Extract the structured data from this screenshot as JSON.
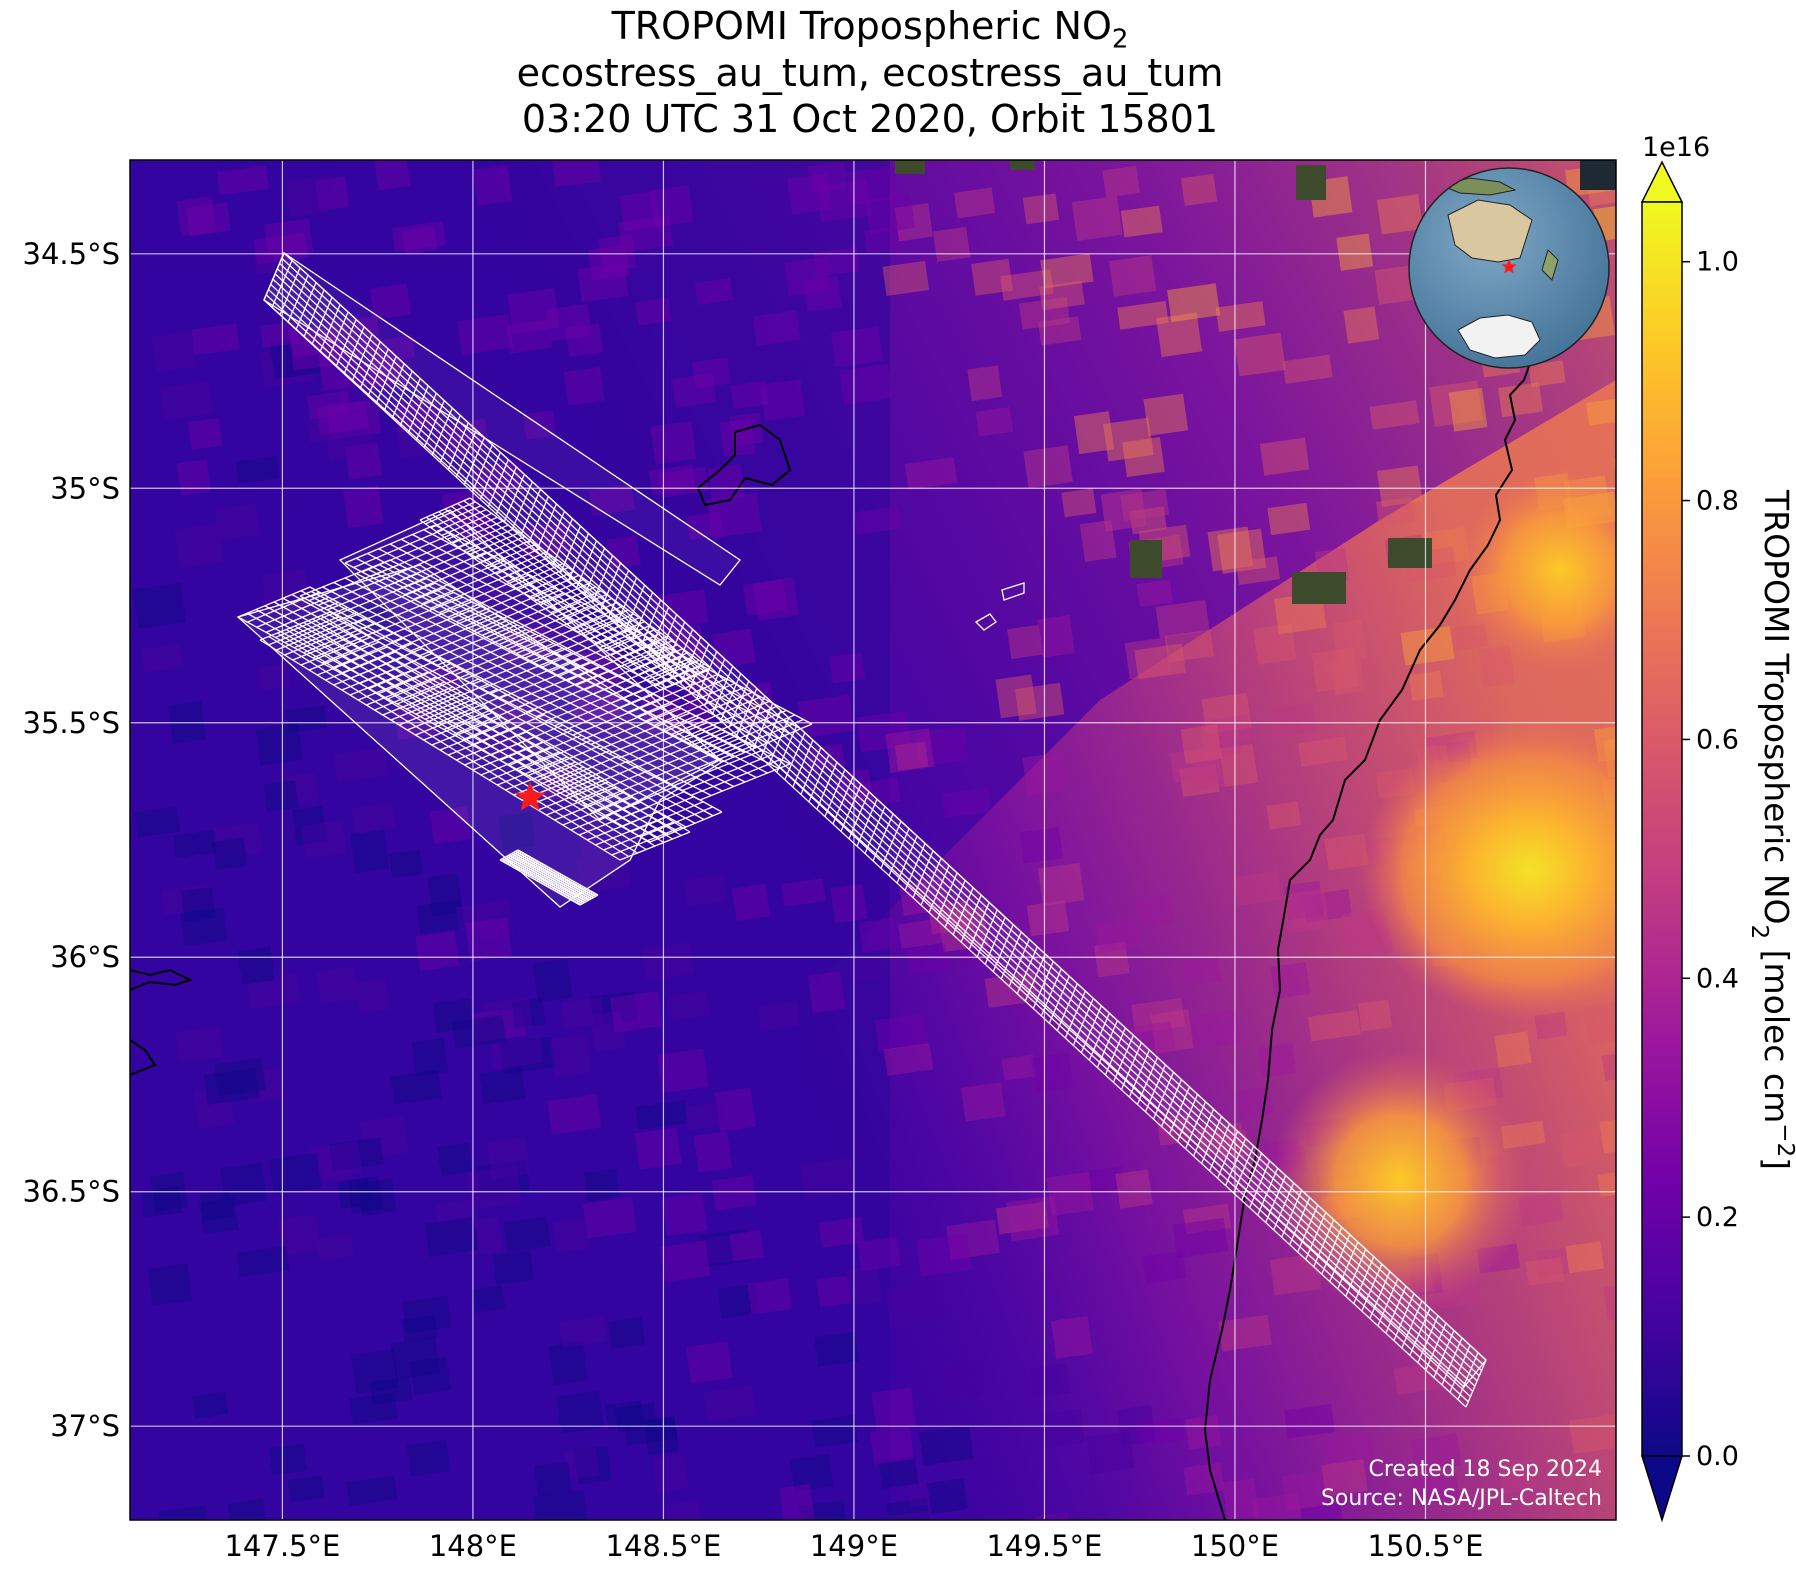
{
  "title": {
    "line1_prefix": "TROPOMI Tropospheric NO",
    "line1_sub": "2",
    "line2": "ecostress_au_tum, ecostress_au_tum",
    "line3": "03:20 UTC 31 Oct 2020, Orbit 15801"
  },
  "map": {
    "lon_range": [
      147.1,
      151.0
    ],
    "lat_range": [
      -37.2,
      -34.3
    ],
    "lon_ticks": [
      147.5,
      148.0,
      148.5,
      149.0,
      149.5,
      150.0,
      150.5
    ],
    "lon_tick_labels": [
      "147.5°E",
      "148°E",
      "148.5°E",
      "149°E",
      "149.5°E",
      "150°E",
      "150.5°E"
    ],
    "lat_ticks": [
      -34.5,
      -35.0,
      -35.5,
      -36.0,
      -36.5,
      -37.0
    ],
    "lat_tick_labels": [
      "34.5°S",
      "35°S",
      "35.5°S",
      "36°S",
      "36.5°S",
      "37°S"
    ],
    "site_marker": {
      "lon": 148.15,
      "lat": -35.66,
      "color": "#ff1a1a",
      "icon": "red-star-icon"
    }
  },
  "colorbar": {
    "label_prefix": "TROPOMI Tropospheric NO",
    "label_sub": "2",
    "label_units": " [molec cm",
    "label_exp": "−2",
    "label_close": "]",
    "multiplier": "1e16",
    "range": [
      0.0,
      1.05
    ],
    "ticks": [
      0.0,
      0.2,
      0.4,
      0.6,
      0.8,
      1.0
    ],
    "tick_labels": [
      "0.0",
      "0.2",
      "0.4",
      "0.6",
      "0.8",
      "1.0"
    ],
    "extend": "both",
    "colormap": "plasma",
    "colors": [
      "#0d0887",
      "#46039f",
      "#7201a8",
      "#9c179e",
      "#bd3786",
      "#d8576b",
      "#ed7953",
      "#fb9f3a",
      "#fdca26",
      "#f0f921"
    ]
  },
  "inset_globe": {
    "icon": "globe-inset-icon",
    "marker_color": "#ff1a1a"
  },
  "credits": {
    "created": "Created 18 Sep 2024",
    "source": "Source: NASA/JPL-Caltech"
  }
}
